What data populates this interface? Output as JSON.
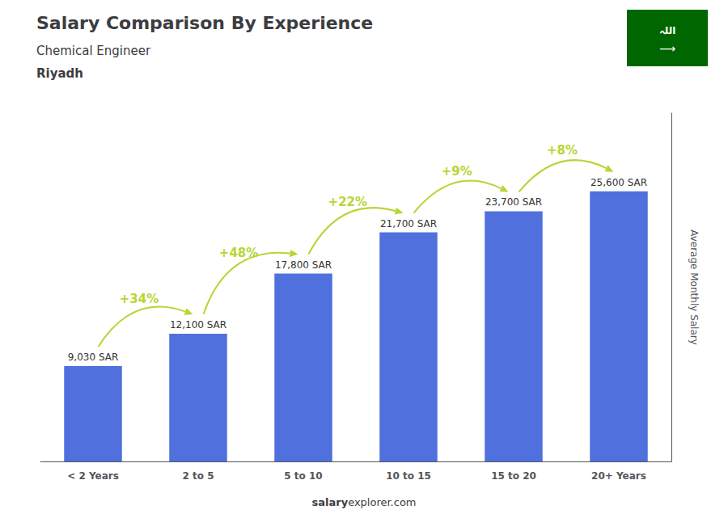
{
  "chart_data": {
    "type": "bar",
    "title": "Salary Comparison By Experience",
    "subtitle": [
      "Chemical Engineer",
      "Riyadh"
    ],
    "categories": [
      "< 2 Years",
      "2 to 5",
      "5 to 10",
      "10 to 15",
      "15 to 20",
      "20+ Years"
    ],
    "values": [
      9030,
      12100,
      17800,
      21700,
      23700,
      25600
    ],
    "value_labels": [
      "9,030 SAR",
      "12,100 SAR",
      "17,800 SAR",
      "21,700 SAR",
      "23,700 SAR",
      "25,600 SAR"
    ],
    "data_labels": true,
    "annotations": [
      "+34%",
      "+48%",
      "+22%",
      "+9%",
      "+8%"
    ],
    "ylabel": "Average Monthly Salary",
    "ylim": [
      0,
      33000
    ],
    "yticks": [],
    "tick_labels": "x",
    "grid": false,
    "footer": [
      "salary",
      "explorer.com"
    ],
    "flag_texts": [
      "اللہ",
      "⟶"
    ],
    "flag_color": "#006600"
  }
}
